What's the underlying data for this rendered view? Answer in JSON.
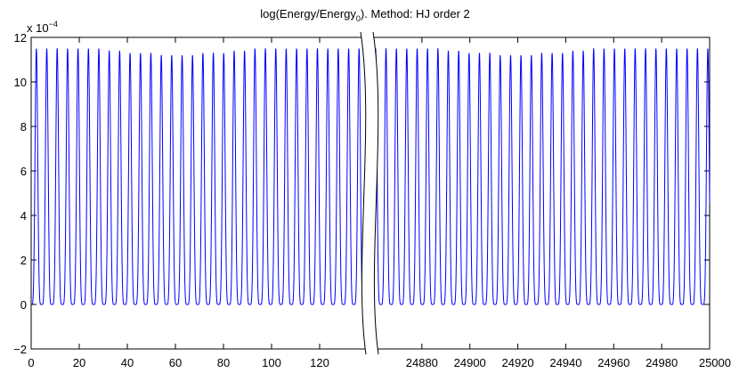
{
  "chart_data": {
    "type": "line",
    "title": {
      "prefix": "log(Energy/Energy",
      "subscript": "0",
      "suffix": "). Method: HJ order 2"
    },
    "y_exponent_label": {
      "base": "x 10",
      "exponent": "−4"
    },
    "ylim": [
      -2,
      12
    ],
    "y_ticks": [
      -2,
      0,
      2,
      4,
      6,
      8,
      10,
      12
    ],
    "y_tick_labels": [
      "−2",
      "0",
      "2",
      "4",
      "6",
      "8",
      "10",
      "12"
    ],
    "grid": false,
    "axis_break": true,
    "segments": [
      {
        "xlim": [
          0,
          140
        ],
        "x_ticks": [
          0,
          20,
          40,
          60,
          80,
          100,
          120
        ],
        "x_tick_labels": [
          "0",
          "20",
          "40",
          "60",
          "80",
          "100",
          "120"
        ]
      },
      {
        "xlim": [
          24860,
          25000
        ],
        "x_ticks": [
          24880,
          24900,
          24920,
          24940,
          24960,
          24980,
          25000
        ],
        "x_tick_labels": [
          "24880",
          "24900",
          "24920",
          "24940",
          "24960",
          "24980",
          "25000"
        ]
      }
    ],
    "series": [
      {
        "color": "#0000ff",
        "oscillation_period": 4.33,
        "baseline": 0,
        "peak_values": [
          11.5,
          11.5,
          11.5,
          11.5,
          11.5,
          11.5,
          11.5,
          11.4,
          11.4,
          11.3,
          11.3,
          11.3,
          11.2,
          11.2,
          11.2,
          11.2,
          11.3,
          11.3,
          11.3,
          11.4,
          11.4,
          11.5,
          11.5,
          11.5,
          11.5,
          11.5,
          11.5,
          11.5,
          11.5,
          11.5,
          11.5,
          11.5
        ]
      }
    ]
  }
}
